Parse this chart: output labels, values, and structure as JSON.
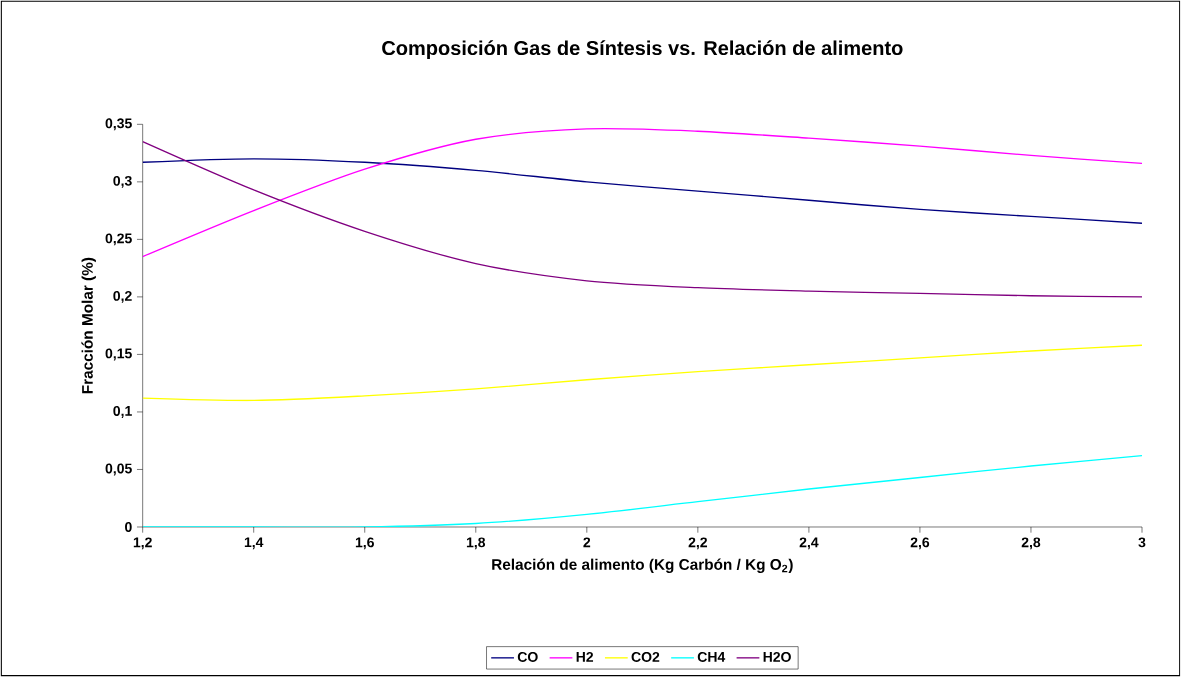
{
  "chart_data": {
    "type": "line",
    "title": "Composición Gas de Síntesis vs. Relación de alimento",
    "xlabel": "Relación de alimento (Kg Carbón / Kg O$_{2}$)",
    "ylabel": "Fracción Molar (%)",
    "x": [
      1.2,
      1.4,
      1.6,
      1.8,
      2.0,
      2.2,
      2.4,
      2.6,
      2.8,
      3.0
    ],
    "series": [
      {
        "name": "CO",
        "color": "#000080",
        "values": [
          0.317,
          0.32,
          0.317,
          0.31,
          0.3,
          0.292,
          0.284,
          0.276,
          0.27,
          0.264
        ]
      },
      {
        "name": "H2",
        "color": "#ff00ff",
        "values": [
          0.235,
          0.275,
          0.311,
          0.337,
          0.346,
          0.344,
          0.338,
          0.331,
          0.323,
          0.316
        ]
      },
      {
        "name": "CO2",
        "color": "#ffff00",
        "values": [
          0.112,
          0.11,
          0.114,
          0.12,
          0.128,
          0.135,
          0.141,
          0.147,
          0.153,
          0.158
        ]
      },
      {
        "name": "CH4",
        "color": "#00ffff",
        "values": [
          0.0,
          0.0,
          0.0,
          0.003,
          0.011,
          0.022,
          0.033,
          0.043,
          0.053,
          0.062
        ]
      },
      {
        "name": "H2O",
        "color": "#800080",
        "values": [
          0.335,
          0.293,
          0.257,
          0.229,
          0.214,
          0.208,
          0.205,
          0.203,
          0.201,
          0.2
        ]
      }
    ],
    "xlim": [
      1.2,
      3.0
    ],
    "ylim": [
      0,
      0.35
    ],
    "xticks": [
      {
        "value": 1.2,
        "label": "1,2"
      },
      {
        "value": 1.4,
        "label": "1,4"
      },
      {
        "value": 1.6,
        "label": "1,6"
      },
      {
        "value": 1.8,
        "label": "1,8"
      },
      2,
      {
        "value": 2.2,
        "label": "2,2"
      },
      {
        "value": 2.4,
        "label": "2,4"
      },
      {
        "value": 2.6,
        "label": "2,6"
      },
      {
        "value": 2.8,
        "label": "2,8"
      },
      3
    ],
    "yticks": [
      0,
      {
        "value": 0.05,
        "label": "0,05"
      },
      {
        "value": 0.1,
        "label": "0,1"
      },
      {
        "value": 0.15,
        "label": "0,15"
      },
      {
        "value": 0.2,
        "label": "0,2"
      },
      {
        "value": 0.25,
        "label": "0,25"
      },
      {
        "value": 0.3,
        "label": "0,3"
      },
      {
        "value": 0.35,
        "label": "0,35"
      }
    ],
    "legend": "bottom",
    "grid": false,
    "marker": "none",
    "line_style": "solid"
  }
}
